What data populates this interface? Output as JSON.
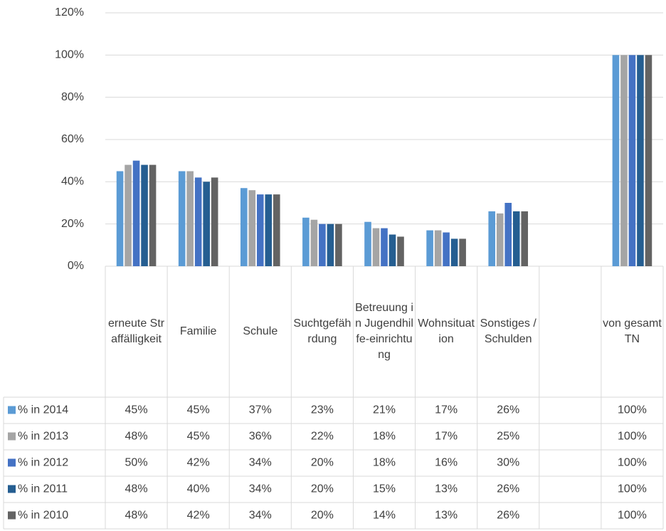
{
  "chart_data": {
    "type": "bar",
    "categories": [
      "erneute Straffälligkeit",
      "Familie",
      "Schule",
      "Suchtgefährdung",
      "Betreuung in Jugendhilfe-einrichtung",
      "Wohnsituation",
      "Sonstiges / Schulden",
      null,
      "von gesamt TN"
    ],
    "series": [
      {
        "name": "% in 2014",
        "color": "#5b9bd5",
        "values": [
          45,
          45,
          37,
          23,
          21,
          17,
          26,
          null,
          100
        ],
        "value_labels": [
          "45%",
          "45%",
          "37%",
          "23%",
          "21%",
          "17%",
          "26%",
          null,
          "100%"
        ]
      },
      {
        "name": "% in 2013",
        "color": "#a5a5a5",
        "values": [
          48,
          45,
          36,
          22,
          18,
          17,
          25,
          null,
          100
        ],
        "value_labels": [
          "48%",
          "45%",
          "36%",
          "22%",
          "18%",
          "17%",
          "25%",
          null,
          "100%"
        ]
      },
      {
        "name": "% in 2012",
        "color": "#4472c4",
        "values": [
          50,
          42,
          34,
          20,
          18,
          16,
          30,
          null,
          100
        ],
        "value_labels": [
          "50%",
          "42%",
          "34%",
          "20%",
          "18%",
          "16%",
          "30%",
          null,
          "100%"
        ]
      },
      {
        "name": "% in 2011",
        "color": "#255e91",
        "values": [
          48,
          40,
          34,
          20,
          15,
          13,
          26,
          null,
          100
        ],
        "value_labels": [
          "48%",
          "40%",
          "34%",
          "20%",
          "15%",
          "13%",
          "26%",
          null,
          "100%"
        ]
      },
      {
        "name": "% in 2010",
        "color": "#636363",
        "values": [
          48,
          42,
          34,
          20,
          14,
          13,
          26,
          null,
          100
        ],
        "value_labels": [
          "48%",
          "42%",
          "34%",
          "20%",
          "14%",
          "13%",
          "26%",
          null,
          "100%"
        ]
      }
    ],
    "ylim": [
      0,
      120
    ],
    "yticks": [
      {
        "value": 0,
        "label": "0%"
      },
      {
        "value": 20,
        "label": "20%"
      },
      {
        "value": 40,
        "label": "40%"
      },
      {
        "value": 60,
        "label": "60%"
      },
      {
        "value": 80,
        "label": "80%"
      },
      {
        "value": 100,
        "label": "100%"
      },
      {
        "value": 120,
        "label": "120%"
      }
    ],
    "grid": true
  }
}
